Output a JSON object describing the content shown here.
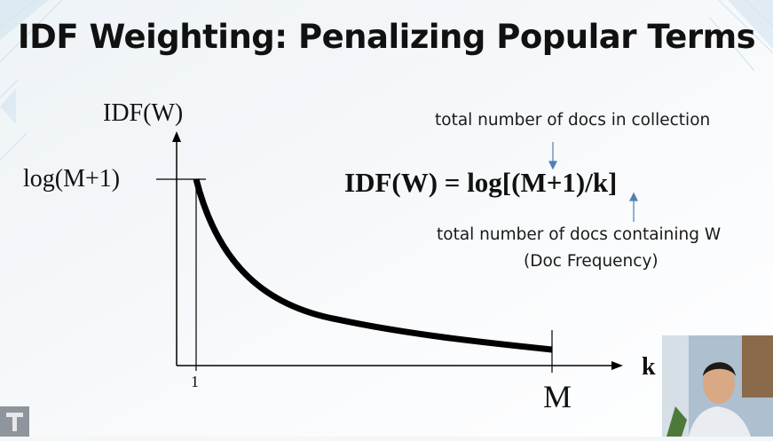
{
  "slide": {
    "title": "IDF Weighting: Penalizing Popular Terms"
  },
  "plot": {
    "y_axis_label": "IDF(W)",
    "y_max_label": "log(M+1)",
    "x_start_label": "1",
    "x_end_label": "M",
    "x_axis_label": "k"
  },
  "formula": {
    "text": "IDF(W) = log[(M+1)/k]",
    "note_total_docs": "total number of docs in collection",
    "note_containing": "total number of docs containing W",
    "note_doc_frequency": "(Doc Frequency)"
  },
  "colors": {
    "arrow": "#4f7fb3",
    "curve": "#000000"
  },
  "icons": {
    "webcam": "presenter-webcam",
    "logo": "corner-logo-icon"
  }
}
